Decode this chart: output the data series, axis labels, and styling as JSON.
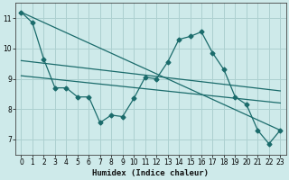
{
  "xlabel": "Humidex (Indice chaleur)",
  "bg_color": "#ceeaea",
  "grid_color": "#acd0d0",
  "line_color": "#1a6b6b",
  "xlim": [
    -0.5,
    23.5
  ],
  "ylim": [
    6.5,
    11.5
  ],
  "yticks": [
    7,
    8,
    9,
    10,
    11
  ],
  "xticks": [
    0,
    1,
    2,
    3,
    4,
    5,
    6,
    7,
    8,
    9,
    10,
    11,
    12,
    13,
    14,
    15,
    16,
    17,
    18,
    19,
    20,
    21,
    22,
    23
  ],
  "series1_x": [
    0,
    1,
    2,
    3,
    4,
    5,
    6,
    7,
    8,
    9,
    10,
    11,
    12,
    13,
    14,
    15,
    16,
    17,
    18,
    19,
    20,
    21,
    22,
    23
  ],
  "series1_y": [
    11.2,
    10.85,
    9.65,
    8.7,
    8.7,
    8.4,
    8.4,
    7.55,
    7.8,
    7.75,
    8.35,
    9.05,
    9.0,
    9.55,
    10.3,
    10.4,
    10.55,
    9.85,
    9.3,
    8.4,
    8.15,
    7.3,
    6.85,
    7.3
  ],
  "line2_x": [
    0,
    23
  ],
  "line2_y": [
    11.2,
    7.3
  ],
  "line3_x": [
    0,
    23
  ],
  "line3_y": [
    9.6,
    8.6
  ],
  "line4_x": [
    0,
    23
  ],
  "line4_y": [
    9.1,
    8.2
  ]
}
